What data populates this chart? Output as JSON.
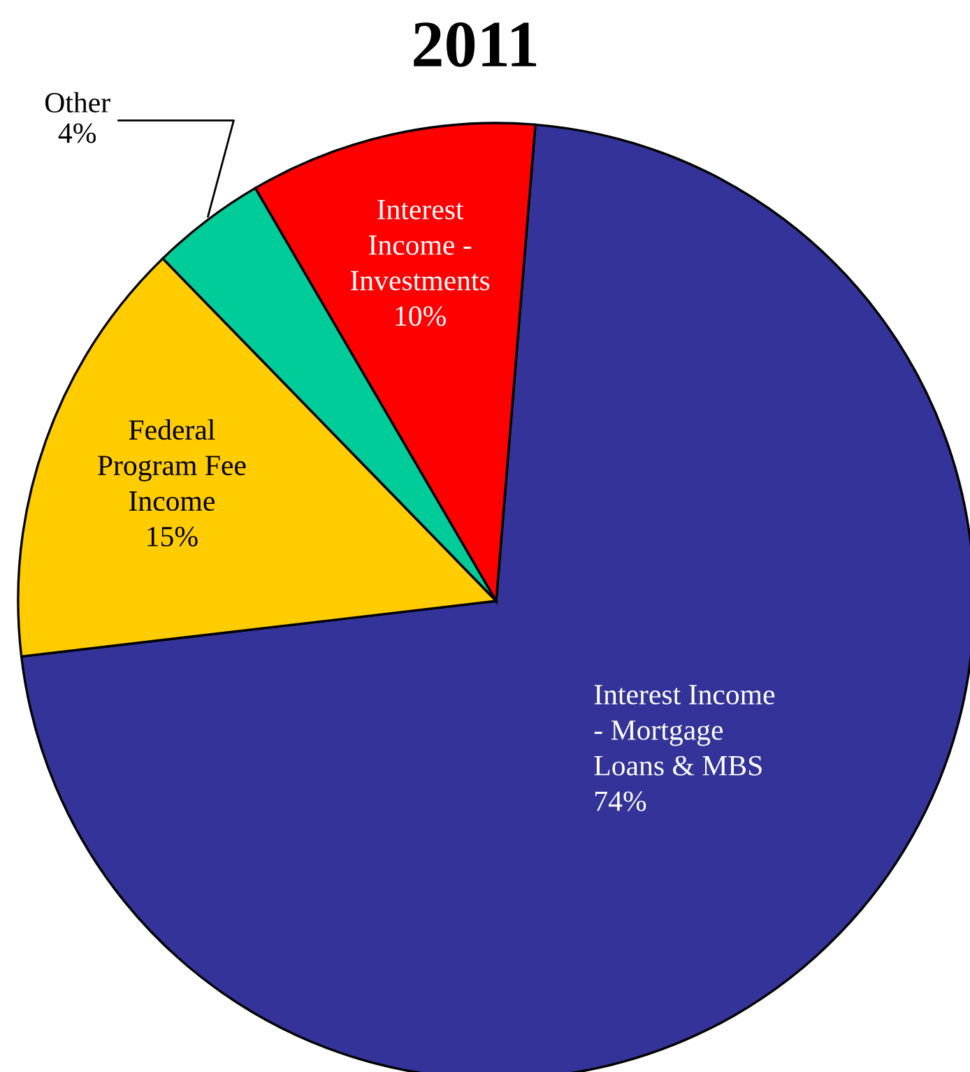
{
  "chart_data": {
    "type": "pie",
    "title": "2011",
    "categories": [
      "Interest Income\n- Mortgage\nLoans & MBS",
      "Federal\nProgram Fee\nIncome",
      "Other",
      "Interest\nIncome -\nInvestments"
    ],
    "values": [
      74,
      15,
      4,
      10
    ],
    "value_labels": [
      "74%",
      "15%",
      "4%",
      "10%"
    ],
    "colors": [
      "#333399",
      "#ffcc00",
      "#00cc99",
      "#ff0000"
    ],
    "legend": false
  }
}
